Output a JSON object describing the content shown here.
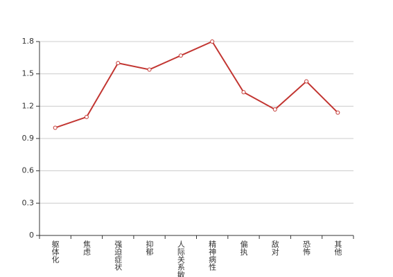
{
  "chart_data": {
    "type": "line",
    "categories": [
      "躯体化",
      "焦虑",
      "强迫症状",
      "抑郁",
      "人际关系敏感",
      "精神病性",
      "偏执",
      "敌对",
      "恐怖",
      "其他"
    ],
    "series": [
      {
        "color": "#c23531",
        "values": [
          1.0,
          1.1,
          1.6,
          1.54,
          1.67,
          1.8,
          1.33,
          1.17,
          1.43,
          1.14
        ]
      }
    ],
    "ylim": [
      0,
      1.8
    ],
    "yticks": [
      0,
      0.3,
      0.6,
      0.9,
      1.2,
      1.5,
      1.8
    ],
    "grid": true
  }
}
